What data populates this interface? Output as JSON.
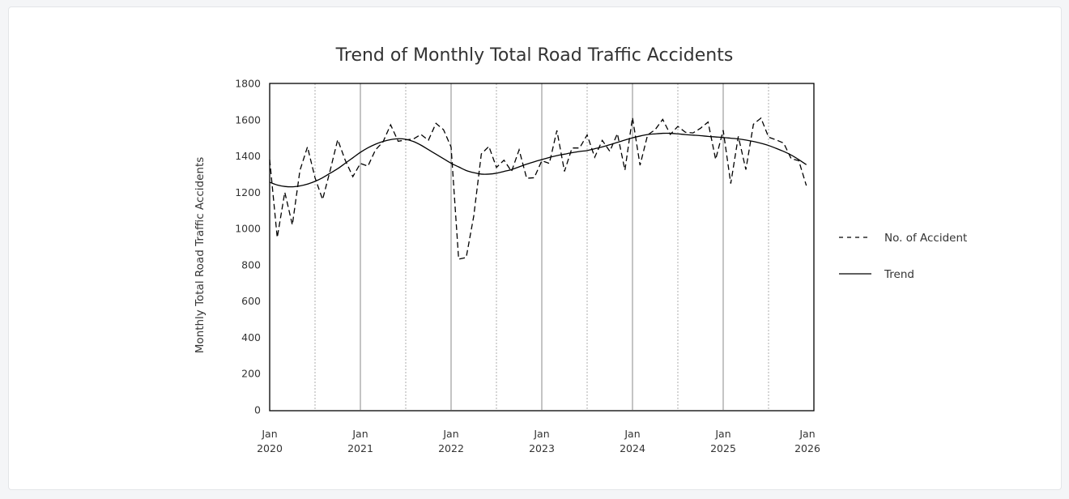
{
  "chart_data": {
    "type": "line",
    "title": "Trend of Monthly Total Road Traffic Accidents",
    "xlabel": "",
    "ylabel": "Monthly Total Road Traffic Accidents",
    "ylim": [
      0,
      1800
    ],
    "yticks": [
      0,
      200,
      400,
      600,
      800,
      1000,
      1200,
      1400,
      1600,
      1800
    ],
    "xticks": [
      {
        "month": "Jan",
        "year": "2020"
      },
      {
        "month": "Jan",
        "year": "2021"
      },
      {
        "month": "Jan",
        "year": "2022"
      },
      {
        "month": "Jan",
        "year": "2023"
      },
      {
        "month": "Jan",
        "year": "2024"
      },
      {
        "month": "Jan",
        "year": "2025"
      },
      {
        "month": "Jan",
        "year": "2026"
      }
    ],
    "x_start": "2020-01",
    "x_end": "2025-12",
    "grid": "vertical lines at each year (solid) and mid-year (dotted)",
    "legend_position": "right",
    "series": [
      {
        "name": "No. of Accident",
        "style": "dashed",
        "color": "#000000",
        "values": [
          1380,
          950,
          1200,
          1020,
          1320,
          1450,
          1280,
          1160,
          1320,
          1490,
          1376,
          1286,
          1359,
          1344,
          1434,
          1478,
          1572,
          1481,
          1489,
          1493,
          1519,
          1487,
          1580,
          1545,
          1449,
          831,
          840,
          1069,
          1411,
          1453,
          1337,
          1377,
          1315,
          1434,
          1277,
          1280,
          1374,
          1359,
          1541,
          1315,
          1444,
          1444,
          1516,
          1393,
          1486,
          1426,
          1523,
          1322,
          1612,
          1349,
          1516,
          1545,
          1602,
          1519,
          1563,
          1531,
          1527,
          1553,
          1587,
          1381,
          1542,
          1248,
          1508,
          1325,
          1575,
          1609,
          1504,
          1489,
          1471,
          1385,
          1374,
          1237
        ]
      },
      {
        "name": "Trend",
        "style": "solid",
        "color": "#000000",
        "values": [
          1255,
          1240,
          1232,
          1230,
          1235,
          1245,
          1260,
          1280,
          1305,
          1330,
          1360,
          1390,
          1420,
          1445,
          1465,
          1480,
          1490,
          1495,
          1492,
          1480,
          1460,
          1435,
          1410,
          1385,
          1360,
          1340,
          1320,
          1308,
          1300,
          1300,
          1305,
          1315,
          1325,
          1340,
          1355,
          1368,
          1380,
          1392,
          1402,
          1410,
          1418,
          1425,
          1430,
          1440,
          1450,
          1462,
          1475,
          1488,
          1500,
          1510,
          1518,
          1522,
          1525,
          1525,
          1522,
          1518,
          1515,
          1512,
          1508,
          1505,
          1502,
          1498,
          1494,
          1488,
          1480,
          1470,
          1458,
          1442,
          1425,
          1405,
          1380,
          1352
        ]
      }
    ]
  }
}
